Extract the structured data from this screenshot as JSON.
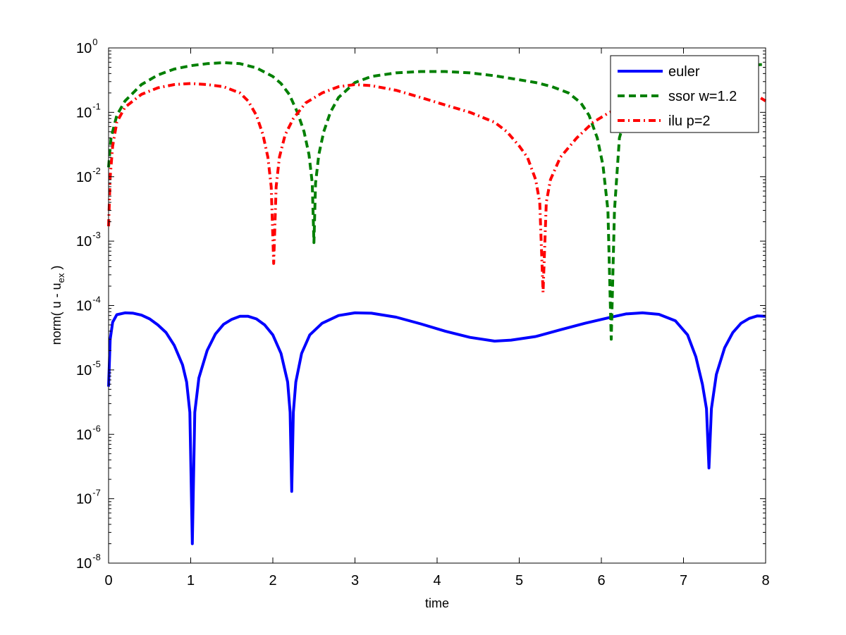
{
  "chart_data": {
    "type": "line",
    "xlabel": "time",
    "ylabel": {
      "prefix": "norm( u - u",
      "subscript": "ex",
      "suffix": " )"
    },
    "xscale": "linear",
    "yscale": "log",
    "xlim": [
      0,
      8
    ],
    "ylim": [
      1e-08,
      1
    ],
    "x_ticks": [
      0,
      1,
      2,
      3,
      4,
      5,
      6,
      7,
      8
    ],
    "x_tick_labels": [
      "0",
      "1",
      "2",
      "3",
      "4",
      "5",
      "6",
      "7",
      "8"
    ],
    "y_ticks": [
      {
        "value": 1,
        "base": "10",
        "exp": "0"
      },
      {
        "value": 0.1,
        "base": "10",
        "exp": "-1"
      },
      {
        "value": 0.01,
        "base": "10",
        "exp": "-2"
      },
      {
        "value": 0.001,
        "base": "10",
        "exp": "-3"
      },
      {
        "value": 0.0001,
        "base": "10",
        "exp": "-4"
      },
      {
        "value": 1e-05,
        "base": "10",
        "exp": "-5"
      },
      {
        "value": 1e-06,
        "base": "10",
        "exp": "-6"
      },
      {
        "value": 1e-07,
        "base": "10",
        "exp": "-7"
      },
      {
        "value": 1e-08,
        "base": "10",
        "exp": "-8"
      }
    ],
    "grid": false,
    "legend_position": "top-right",
    "series": [
      {
        "name": "euler",
        "color": "#0000ff",
        "style": "solid",
        "points": [
          [
            0.0,
            5.5e-06
          ],
          [
            0.02,
            3e-05
          ],
          [
            0.05,
            5.5e-05
          ],
          [
            0.1,
            7.2e-05
          ],
          [
            0.2,
            7.7e-05
          ],
          [
            0.3,
            7.6e-05
          ],
          [
            0.4,
            7.1e-05
          ],
          [
            0.5,
            6.2e-05
          ],
          [
            0.6,
            5e-05
          ],
          [
            0.7,
            3.8e-05
          ],
          [
            0.8,
            2.4e-05
          ],
          [
            0.9,
            1.2e-05
          ],
          [
            0.95,
            6.5e-06
          ],
          [
            0.99,
            2.2e-06
          ],
          [
            1.02,
            2e-08
          ],
          [
            1.05,
            2.2e-06
          ],
          [
            1.1,
            7.5e-06
          ],
          [
            1.2,
            2e-05
          ],
          [
            1.3,
            3.6e-05
          ],
          [
            1.4,
            5.1e-05
          ],
          [
            1.5,
            6.1e-05
          ],
          [
            1.6,
            6.8e-05
          ],
          [
            1.7,
            6.8e-05
          ],
          [
            1.8,
            6.2e-05
          ],
          [
            1.9,
            5e-05
          ],
          [
            2.0,
            3.5e-05
          ],
          [
            2.1,
            1.8e-05
          ],
          [
            2.18,
            6.5e-06
          ],
          [
            2.21,
            2.2e-06
          ],
          [
            2.23,
            1.3e-07
          ],
          [
            2.25,
            2.2e-06
          ],
          [
            2.28,
            6.5e-06
          ],
          [
            2.35,
            1.8e-05
          ],
          [
            2.45,
            3.5e-05
          ],
          [
            2.6,
            5.3e-05
          ],
          [
            2.8,
            7e-05
          ],
          [
            3.0,
            7.7e-05
          ],
          [
            3.2,
            7.6e-05
          ],
          [
            3.5,
            6.6e-05
          ],
          [
            3.8,
            5.2e-05
          ],
          [
            4.1,
            4e-05
          ],
          [
            4.4,
            3.2e-05
          ],
          [
            4.7,
            2.8e-05
          ],
          [
            4.9,
            2.9e-05
          ],
          [
            5.2,
            3.3e-05
          ],
          [
            5.5,
            4.2e-05
          ],
          [
            5.8,
            5.3e-05
          ],
          [
            6.1,
            6.5e-05
          ],
          [
            6.3,
            7.4e-05
          ],
          [
            6.5,
            7.7e-05
          ],
          [
            6.7,
            7.3e-05
          ],
          [
            6.9,
            5.8e-05
          ],
          [
            7.05,
            3.5e-05
          ],
          [
            7.15,
            1.6e-05
          ],
          [
            7.23,
            6e-06
          ],
          [
            7.28,
            2.5e-06
          ],
          [
            7.31,
            3e-07
          ],
          [
            7.34,
            2.5e-06
          ],
          [
            7.4,
            8.5e-06
          ],
          [
            7.5,
            2.2e-05
          ],
          [
            7.6,
            3.8e-05
          ],
          [
            7.7,
            5.3e-05
          ],
          [
            7.8,
            6.3e-05
          ],
          [
            7.9,
            6.9e-05
          ],
          [
            8.0,
            6.8e-05
          ]
        ]
      },
      {
        "name": "ssor w=1.2",
        "color": "#007f00",
        "style": "dashed",
        "points": [
          [
            0.0,
            0.014
          ],
          [
            0.03,
            0.04
          ],
          [
            0.1,
            0.09
          ],
          [
            0.2,
            0.15
          ],
          [
            0.4,
            0.27
          ],
          [
            0.6,
            0.38
          ],
          [
            0.8,
            0.47
          ],
          [
            1.0,
            0.53
          ],
          [
            1.2,
            0.57
          ],
          [
            1.4,
            0.59
          ],
          [
            1.6,
            0.57
          ],
          [
            1.8,
            0.49
          ],
          [
            2.0,
            0.36
          ],
          [
            2.1,
            0.28
          ],
          [
            2.2,
            0.19
          ],
          [
            2.3,
            0.1
          ],
          [
            2.38,
            0.05
          ],
          [
            2.44,
            0.022
          ],
          [
            2.48,
            0.008
          ],
          [
            2.5,
            0.00095
          ],
          [
            2.52,
            0.008
          ],
          [
            2.56,
            0.022
          ],
          [
            2.62,
            0.05
          ],
          [
            2.7,
            0.1
          ],
          [
            2.8,
            0.17
          ],
          [
            3.0,
            0.29
          ],
          [
            3.2,
            0.36
          ],
          [
            3.5,
            0.41
          ],
          [
            3.8,
            0.43
          ],
          [
            4.1,
            0.43
          ],
          [
            4.4,
            0.41
          ],
          [
            4.7,
            0.37
          ],
          [
            5.0,
            0.32
          ],
          [
            5.2,
            0.29
          ],
          [
            5.4,
            0.25
          ],
          [
            5.6,
            0.2
          ],
          [
            5.75,
            0.14
          ],
          [
            5.85,
            0.09
          ],
          [
            5.95,
            0.04
          ],
          [
            6.02,
            0.015
          ],
          [
            6.08,
            0.003
          ],
          [
            6.12,
            3e-05
          ],
          [
            6.16,
            0.003
          ],
          [
            6.22,
            0.04
          ],
          [
            6.3,
            0.09
          ],
          [
            6.5,
            0.18
          ],
          [
            6.8,
            0.29
          ],
          [
            7.1,
            0.39
          ],
          [
            7.4,
            0.46
          ],
          [
            7.7,
            0.52
          ],
          [
            8.0,
            0.56
          ]
        ]
      },
      {
        "name": "ilu p=2",
        "color": "#ff0000",
        "style": "dashdot",
        "points": [
          [
            0.0,
            0.0017
          ],
          [
            0.02,
            0.01
          ],
          [
            0.05,
            0.03
          ],
          [
            0.1,
            0.07
          ],
          [
            0.2,
            0.12
          ],
          [
            0.4,
            0.19
          ],
          [
            0.6,
            0.24
          ],
          [
            0.8,
            0.27
          ],
          [
            1.0,
            0.28
          ],
          [
            1.2,
            0.27
          ],
          [
            1.4,
            0.25
          ],
          [
            1.6,
            0.2
          ],
          [
            1.7,
            0.15
          ],
          [
            1.8,
            0.09
          ],
          [
            1.88,
            0.045
          ],
          [
            1.94,
            0.02
          ],
          [
            1.98,
            0.007
          ],
          [
            2.01,
            0.00045
          ],
          [
            2.04,
            0.007
          ],
          [
            2.08,
            0.02
          ],
          [
            2.15,
            0.045
          ],
          [
            2.25,
            0.08
          ],
          [
            2.4,
            0.14
          ],
          [
            2.6,
            0.2
          ],
          [
            2.8,
            0.25
          ],
          [
            3.0,
            0.27
          ],
          [
            3.2,
            0.26
          ],
          [
            3.5,
            0.22
          ],
          [
            3.8,
            0.17
          ],
          [
            4.1,
            0.13
          ],
          [
            4.4,
            0.1
          ],
          [
            4.7,
            0.07
          ],
          [
            4.85,
            0.05
          ],
          [
            5.0,
            0.03
          ],
          [
            5.1,
            0.02
          ],
          [
            5.2,
            0.009
          ],
          [
            5.25,
            0.004
          ],
          [
            5.29,
            0.00016
          ],
          [
            5.33,
            0.004
          ],
          [
            5.38,
            0.009
          ],
          [
            5.5,
            0.02
          ],
          [
            5.7,
            0.04
          ],
          [
            5.9,
            0.07
          ],
          [
            6.1,
            0.1
          ],
          [
            6.4,
            0.14
          ],
          [
            6.8,
            0.18
          ],
          [
            7.2,
            0.21
          ],
          [
            7.6,
            0.22
          ],
          [
            7.9,
            0.18
          ],
          [
            8.0,
            0.15
          ]
        ]
      }
    ]
  }
}
